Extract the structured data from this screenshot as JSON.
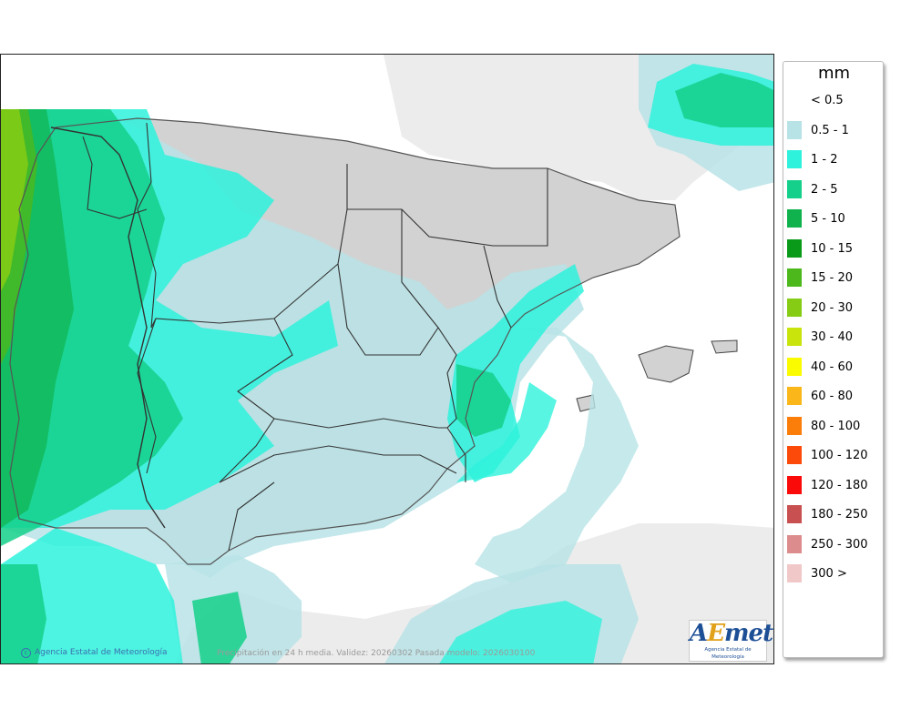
{
  "legend": {
    "unit": "mm",
    "entries": [
      {
        "label": "< 0.5",
        "color": ""
      },
      {
        "label": "0.5 - 1",
        "color": "#b8e3e6"
      },
      {
        "label": "1 - 2",
        "color": "#2ef2dc"
      },
      {
        "label": "2 - 5",
        "color": "#14d08a"
      },
      {
        "label": "5 - 10",
        "color": "#0fb24d"
      },
      {
        "label": "10 - 15",
        "color": "#0a9a1a"
      },
      {
        "label": "15 - 20",
        "color": "#4cb81c"
      },
      {
        "label": "20 - 30",
        "color": "#86cc14"
      },
      {
        "label": "30 - 40",
        "color": "#c8e40c"
      },
      {
        "label": "40 - 60",
        "color": "#fbfb00"
      },
      {
        "label": "60 - 80",
        "color": "#fbb71a"
      },
      {
        "label": "80 - 100",
        "color": "#fb7d0a"
      },
      {
        "label": "100 - 120",
        "color": "#fb4a0a"
      },
      {
        "label": "120 - 180",
        "color": "#fb0a0a"
      },
      {
        "label": "180 - 250",
        "color": "#c85050"
      },
      {
        "label": "250 - 300",
        "color": "#dc8c8c"
      },
      {
        "label": "300 >",
        "color": "#f0c8c8"
      }
    ]
  },
  "map": {
    "agency_credit": "Agencia Estatal de Meteorología",
    "validity_text": "Precipitación en 24 h media. Validez: 20260302 Pasada modelo: 2026030100",
    "colors": {
      "sea": "#ffffff",
      "land_outside": "#ececec",
      "land_relief": "#d4d4d4",
      "border": "#333333"
    }
  },
  "logo": {
    "name": "AEmet",
    "subtitle": "Agencia Estatal de Meteorología"
  }
}
